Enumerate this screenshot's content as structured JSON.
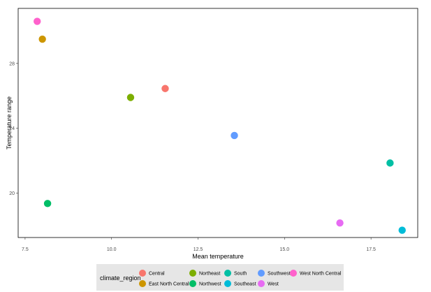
{
  "chart_data": {
    "type": "scatter",
    "xlabel": "Mean temperature",
    "ylabel": "Temperature range",
    "xlim": [
      7.3,
      18.85
    ],
    "ylim": [
      17.25,
      31.4
    ],
    "x_ticks": [
      7.5,
      10.0,
      12.5,
      15.0,
      17.5
    ],
    "x_tick_labels": [
      "7.5",
      "10.0",
      "12.5",
      "15.0",
      "17.5"
    ],
    "y_ticks": [
      20,
      24,
      28
    ],
    "y_tick_labels": [
      "20",
      "24",
      "28"
    ],
    "grid": false,
    "legend": {
      "title": "climate_region",
      "placement": "bottom"
    },
    "series": [
      {
        "name": "Central",
        "color": "#F8766D",
        "x": 11.55,
        "y": 26.45
      },
      {
        "name": "East North Central",
        "color": "#CD9600",
        "x": 8.0,
        "y": 29.5
      },
      {
        "name": "Northeast",
        "color": "#7CAE00",
        "x": 10.55,
        "y": 25.9
      },
      {
        "name": "Northwest",
        "color": "#00BE67",
        "x": 8.15,
        "y": 19.35
      },
      {
        "name": "South",
        "color": "#00BFA4",
        "x": 18.05,
        "y": 21.85
      },
      {
        "name": "Southeast",
        "color": "#00BCD8",
        "x": 18.4,
        "y": 17.7
      },
      {
        "name": "Southwest",
        "color": "#619CFF",
        "x": 13.55,
        "y": 23.55
      },
      {
        "name": "West",
        "color": "#E76BF3",
        "x": 16.6,
        "y": 18.15
      },
      {
        "name": "West North Central",
        "color": "#FF61CC",
        "x": 7.85,
        "y": 30.6
      }
    ]
  }
}
